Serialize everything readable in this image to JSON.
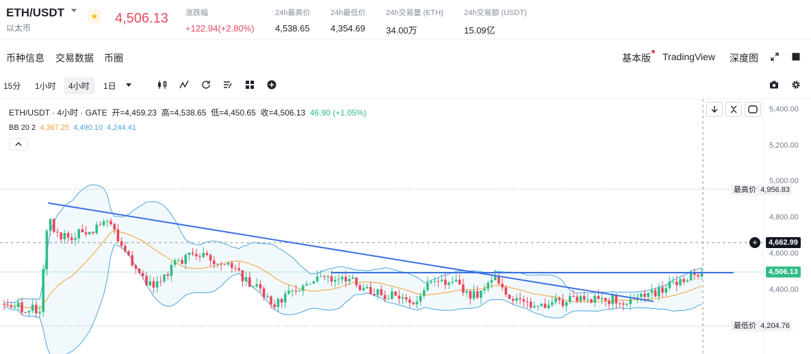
{
  "header": {
    "pair": "ETH/USDT",
    "pair_sub": "以太币",
    "last_price": "4,506.13",
    "stats": [
      {
        "label": "涨跌幅",
        "value": "+122.94(+2.80%)",
        "color": "red"
      },
      {
        "label": "24h最高价",
        "value": "4,538.65",
        "color": "normal"
      },
      {
        "label": "24h最低价",
        "value": "4,354.69",
        "color": "normal"
      },
      {
        "label": "24h交易量 (ETH)",
        "value": "34.00万",
        "color": "normal"
      },
      {
        "label": "24h交易额 (USDT)",
        "value": "15.09亿",
        "color": "normal"
      }
    ]
  },
  "subnav": {
    "tabs": [
      "币种信息",
      "交易数据",
      "币圈"
    ],
    "right": {
      "basic": "基本版",
      "tradingview": "TradingView",
      "depth": "深度图"
    }
  },
  "toolbar": {
    "timeframes": [
      "15分",
      "1小时",
      "4小时",
      "1日"
    ],
    "active": "4小时"
  },
  "chart": {
    "legend": {
      "symbol": "ETH/USDT · 4小时 · GATE",
      "open": "开=4,459.23",
      "high": "高=4,538.65",
      "low": "低=4,450.65",
      "close": "收=4,506.13",
      "change": "46.90 (+1.05%)"
    },
    "bb": {
      "label": "BB 20 2",
      "basis": "4,367.25",
      "upper": "4,490.10",
      "lower": "4,244.41"
    },
    "y_ticks": [
      "5,400.00",
      "5,200.00",
      "5,000.00",
      "4,800.00",
      "4,600.00",
      "4,400.00"
    ],
    "highest_label": "最高价",
    "highest_value": "4,956.83",
    "lowest_label": "最低价",
    "lowest_value": "4,204.76",
    "crosshair_value": "4,662.99",
    "current_value": "4,506.13",
    "colors": {
      "up": "#2ebd85",
      "down": "#e8475b",
      "bb_basis": "#f39c33",
      "bb_band": "#4aa3df",
      "trendline": "#3b6fe0"
    }
  }
}
